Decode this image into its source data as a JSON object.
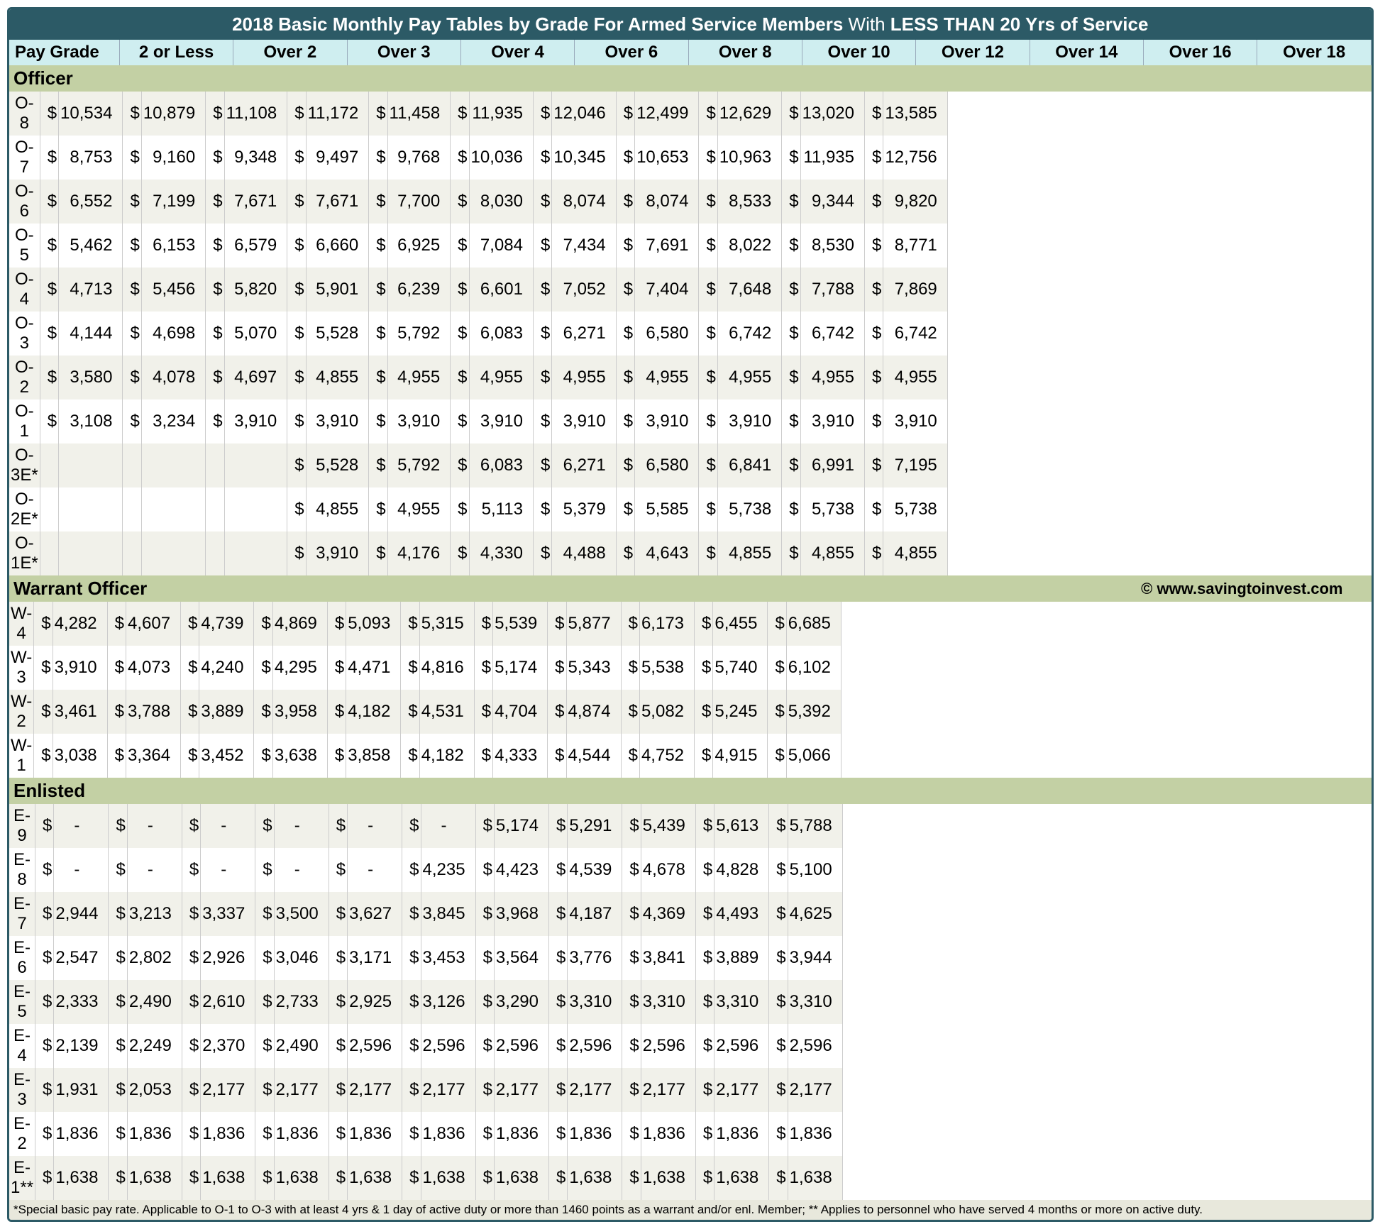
{
  "title_prefix": "2018 Basic Monthly Pay Tables by Grade For Armed Service Members ",
  "title_mid": "With ",
  "title_bold": "LESS THAN 20 Yrs of Service",
  "columns": [
    "Pay Grade",
    "2 or Less",
    "Over 2",
    "Over 3",
    "Over 4",
    "Over 6",
    "Over 8",
    "Over 10",
    "Over 12",
    "Over 14",
    "Over 16",
    "Over 18"
  ],
  "copyright": "© www.savingtoinvest.com",
  "footnote": "*Special basic pay rate. Applicable to O-1 to O-3 with at least 4 yrs & 1 day of active duty or more than 1460 points as a warrant and/or enl. Member; ** Applies to personnel who have served 4 months or more on active duty.",
  "sections": [
    {
      "name": "Officer",
      "rows": [
        {
          "grade": "O-8",
          "v": [
            "10,534",
            "10,879",
            "11,108",
            "11,172",
            "11,458",
            "11,935",
            "12,046",
            "12,499",
            "12,629",
            "13,020",
            "13,585"
          ]
        },
        {
          "grade": "O-7",
          "v": [
            "8,753",
            "9,160",
            "9,348",
            "9,497",
            "9,768",
            "10,036",
            "10,345",
            "10,653",
            "10,963",
            "11,935",
            "12,756"
          ]
        },
        {
          "grade": "O-6",
          "v": [
            "6,552",
            "7,199",
            "7,671",
            "7,671",
            "7,700",
            "8,030",
            "8,074",
            "8,074",
            "8,533",
            "9,344",
            "9,820"
          ]
        },
        {
          "grade": "O-5",
          "v": [
            "5,462",
            "6,153",
            "6,579",
            "6,660",
            "6,925",
            "7,084",
            "7,434",
            "7,691",
            "8,022",
            "8,530",
            "8,771"
          ]
        },
        {
          "grade": "O-4",
          "v": [
            "4,713",
            "5,456",
            "5,820",
            "5,901",
            "6,239",
            "6,601",
            "7,052",
            "7,404",
            "7,648",
            "7,788",
            "7,869"
          ]
        },
        {
          "grade": "O-3",
          "v": [
            "4,144",
            "4,698",
            "5,070",
            "5,528",
            "5,792",
            "6,083",
            "6,271",
            "6,580",
            "6,742",
            "6,742",
            "6,742"
          ]
        },
        {
          "grade": "O-2",
          "v": [
            "3,580",
            "4,078",
            "4,697",
            "4,855",
            "4,955",
            "4,955",
            "4,955",
            "4,955",
            "4,955",
            "4,955",
            "4,955"
          ]
        },
        {
          "grade": "O-1",
          "v": [
            "3,108",
            "3,234",
            "3,910",
            "3,910",
            "3,910",
            "3,910",
            "3,910",
            "3,910",
            "3,910",
            "3,910",
            "3,910"
          ]
        },
        {
          "grade": "O-3E*",
          "v": [
            "",
            "",
            "",
            "5,528",
            "5,792",
            "6,083",
            "6,271",
            "6,580",
            "6,841",
            "6,991",
            "7,195"
          ]
        },
        {
          "grade": "O-2E*",
          "v": [
            "",
            "",
            "",
            "4,855",
            "4,955",
            "5,113",
            "5,379",
            "5,585",
            "5,738",
            "5,738",
            "5,738"
          ]
        },
        {
          "grade": "O-1E*",
          "v": [
            "",
            "",
            "",
            "3,910",
            "4,176",
            "4,330",
            "4,488",
            "4,643",
            "4,855",
            "4,855",
            "4,855"
          ]
        }
      ]
    },
    {
      "name": "Warrant Officer",
      "copyright": true,
      "rows": [
        {
          "grade": "W-4",
          "v": [
            "4,282",
            "4,607",
            "4,739",
            "4,869",
            "5,093",
            "5,315",
            "5,539",
            "5,877",
            "6,173",
            "6,455",
            "6,685"
          ]
        },
        {
          "grade": "W-3",
          "v": [
            "3,910",
            "4,073",
            "4,240",
            "4,295",
            "4,471",
            "4,816",
            "5,174",
            "5,343",
            "5,538",
            "5,740",
            "6,102"
          ]
        },
        {
          "grade": "W-2",
          "v": [
            "3,461",
            "3,788",
            "3,889",
            "3,958",
            "4,182",
            "4,531",
            "4,704",
            "4,874",
            "5,082",
            "5,245",
            "5,392"
          ]
        },
        {
          "grade": "W-1",
          "v": [
            "3,038",
            "3,364",
            "3,452",
            "3,638",
            "3,858",
            "4,182",
            "4,333",
            "4,544",
            "4,752",
            "4,915",
            "5,066"
          ]
        }
      ]
    },
    {
      "name": " Enlisted",
      "rows": [
        {
          "grade": "E-9",
          "v": [
            "-",
            "-",
            "-",
            "-",
            "-",
            "-",
            "5,174",
            "5,291",
            "5,439",
            "5,613",
            "5,788"
          ]
        },
        {
          "grade": "E-8",
          "v": [
            "-",
            "-",
            "-",
            "-",
            "-",
            "4,235",
            "4,423",
            "4,539",
            "4,678",
            "4,828",
            "5,100"
          ]
        },
        {
          "grade": "E-7",
          "v": [
            "2,944",
            "3,213",
            "3,337",
            "3,500",
            "3,627",
            "3,845",
            "3,968",
            "4,187",
            "4,369",
            "4,493",
            "4,625"
          ]
        },
        {
          "grade": "E-6",
          "v": [
            "2,547",
            "2,802",
            "2,926",
            "3,046",
            "3,171",
            "3,453",
            "3,564",
            "3,776",
            "3,841",
            "3,889",
            "3,944"
          ]
        },
        {
          "grade": "E-5",
          "v": [
            "2,333",
            "2,490",
            "2,610",
            "2,733",
            "2,925",
            "3,126",
            "3,290",
            "3,310",
            "3,310",
            "3,310",
            "3,310"
          ]
        },
        {
          "grade": "E-4",
          "v": [
            "2,139",
            "2,249",
            "2,370",
            "2,490",
            "2,596",
            "2,596",
            "2,596",
            "2,596",
            "2,596",
            "2,596",
            "2,596"
          ]
        },
        {
          "grade": "E-3",
          "v": [
            "1,931",
            "2,053",
            "2,177",
            "2,177",
            "2,177",
            "2,177",
            "2,177",
            "2,177",
            "2,177",
            "2,177",
            "2,177"
          ]
        },
        {
          "grade": "E-2",
          "v": [
            "1,836",
            "1,836",
            "1,836",
            "1,836",
            "1,836",
            "1,836",
            "1,836",
            "1,836",
            "1,836",
            "1,836",
            "1,836"
          ]
        },
        {
          "grade": "E-1**",
          "v": [
            "1,638",
            "1,638",
            "1,638",
            "1,638",
            "1,638",
            "1,638",
            "1,638",
            "1,638",
            "1,638",
            "1,638",
            "1,638"
          ]
        }
      ]
    }
  ]
}
